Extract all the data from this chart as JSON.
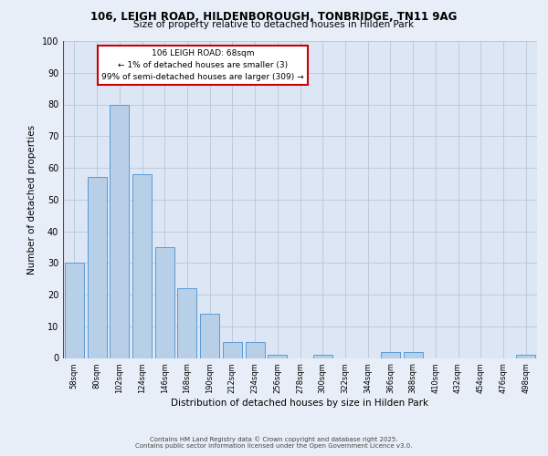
{
  "title1": "106, LEIGH ROAD, HILDENBOROUGH, TONBRIDGE, TN11 9AG",
  "title2": "Size of property relative to detached houses in Hilden Park",
  "xlabel": "Distribution of detached houses by size in Hilden Park",
  "ylabel": "Number of detached properties",
  "categories": [
    "58sqm",
    "80sqm",
    "102sqm",
    "124sqm",
    "146sqm",
    "168sqm",
    "190sqm",
    "212sqm",
    "234sqm",
    "256sqm",
    "278sqm",
    "300sqm",
    "322sqm",
    "344sqm",
    "366sqm",
    "388sqm",
    "410sqm",
    "432sqm",
    "454sqm",
    "476sqm",
    "498sqm"
  ],
  "values": [
    30,
    57,
    80,
    58,
    35,
    22,
    14,
    5,
    5,
    1,
    0,
    1,
    0,
    0,
    2,
    2,
    0,
    0,
    0,
    0,
    1
  ],
  "bar_color": "#b8cfe8",
  "bar_edge_color": "#5b9bd5",
  "bg_color": "#e8eef7",
  "plot_bg_color": "#dce6f5",
  "grid_color": "#b8c8d8",
  "annotation_text": "106 LEIGH ROAD: 68sqm\n← 1% of detached houses are smaller (3)\n99% of semi-detached houses are larger (309) →",
  "annotation_box_face": "#ffffff",
  "annotation_box_edge": "#cc0000",
  "ylim": [
    0,
    100
  ],
  "yticks": [
    0,
    10,
    20,
    30,
    40,
    50,
    60,
    70,
    80,
    90,
    100
  ],
  "footnote1": "Contains HM Land Registry data © Crown copyright and database right 2025.",
  "footnote2": "Contains public sector information licensed under the Open Government Licence v3.0.",
  "title1_fontsize": 8.5,
  "title2_fontsize": 7.5,
  "xlabel_fontsize": 7.5,
  "ylabel_fontsize": 7.5,
  "xtick_fontsize": 6.0,
  "ytick_fontsize": 7.0,
  "annotation_fontsize": 6.5,
  "footnote_fontsize": 5.0
}
